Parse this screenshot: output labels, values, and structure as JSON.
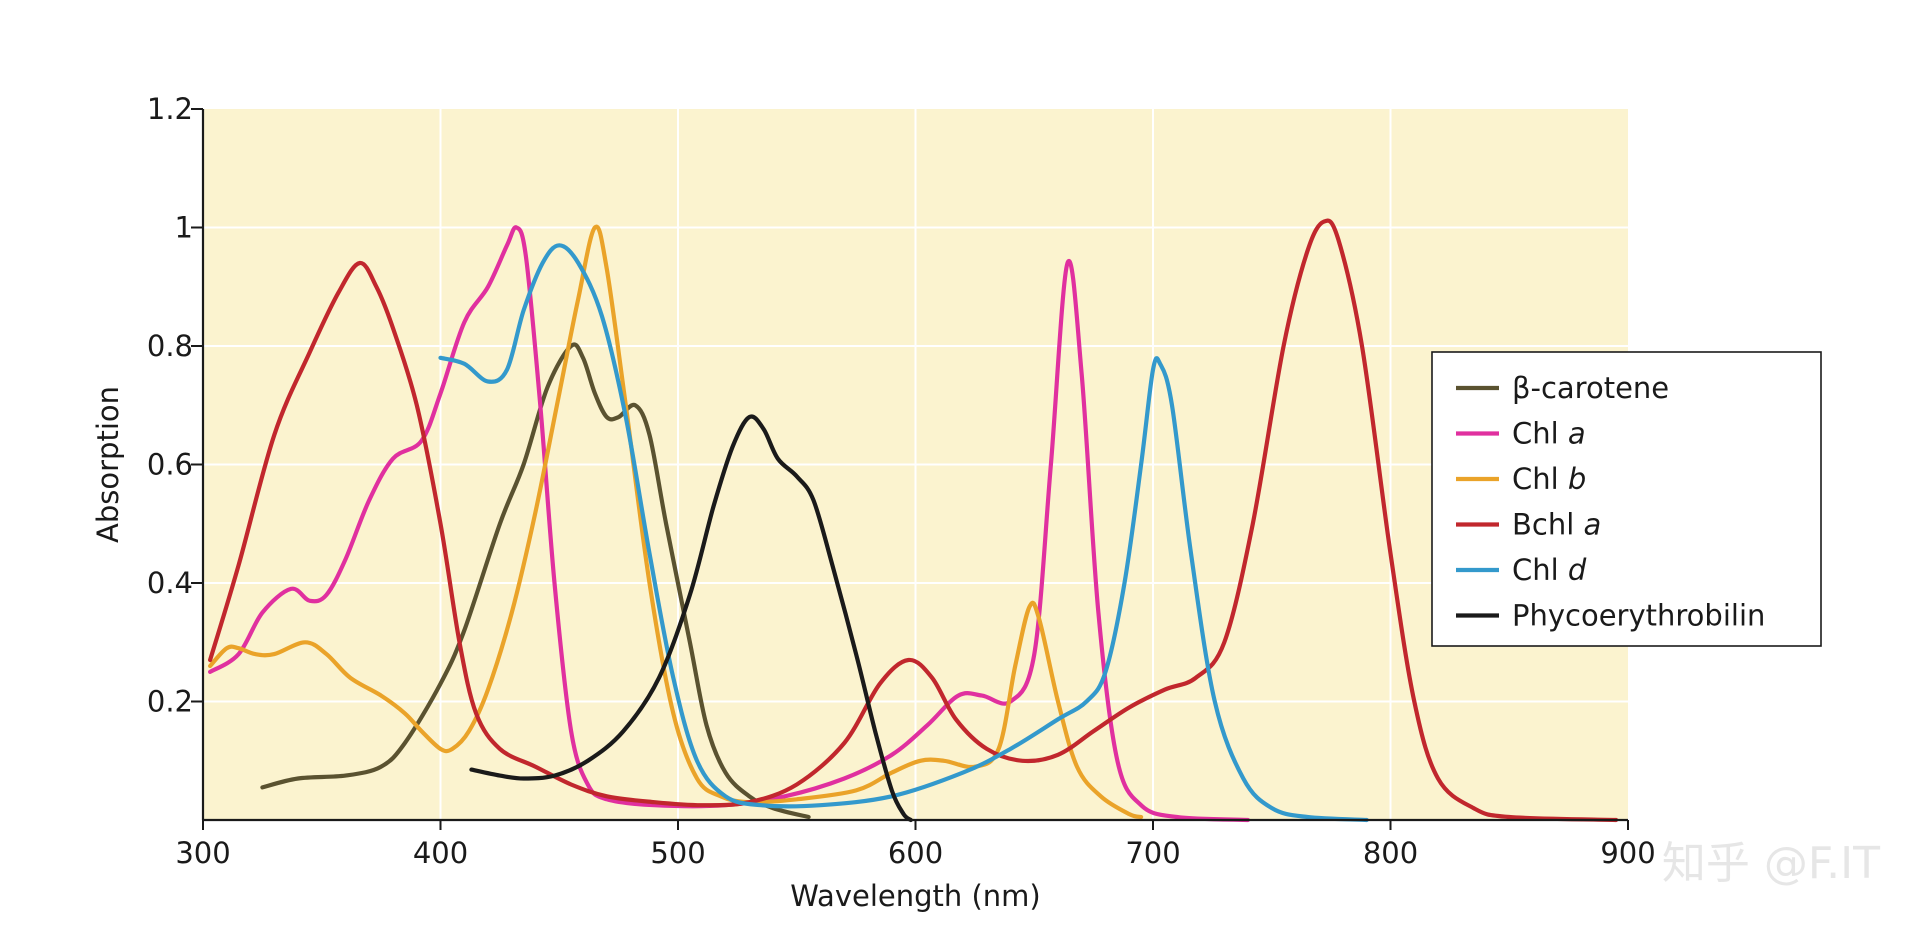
{
  "chart_data": {
    "type": "line",
    "title": "",
    "xlabel": "Wavelength (nm)",
    "ylabel": "Absorption",
    "xlim": [
      300,
      900
    ],
    "ylim": [
      0,
      1.2
    ],
    "xticks": [
      300,
      400,
      500,
      600,
      700,
      800,
      900
    ],
    "xtick_labels": [
      "300",
      "400",
      "500",
      "600",
      "700",
      "800",
      "900"
    ],
    "yticks": [
      0.2,
      0.4,
      0.6,
      0.8,
      1,
      1.2
    ],
    "ytick_labels": [
      "0.2",
      "0.4",
      "0.6",
      "0.8",
      "1",
      "1.2"
    ],
    "grid": true,
    "background": "#fbf3cf",
    "gridline_color": "#ffffff",
    "legend_position": "right",
    "series": [
      {
        "name": "β-carotene",
        "name_plain": "β-carotene",
        "name_italic": "",
        "color": "#5a5230",
        "points": [
          [
            325,
            0.055
          ],
          [
            340,
            0.07
          ],
          [
            360,
            0.075
          ],
          [
            375,
            0.09
          ],
          [
            385,
            0.13
          ],
          [
            400,
            0.23
          ],
          [
            410,
            0.32
          ],
          [
            425,
            0.5
          ],
          [
            435,
            0.6
          ],
          [
            445,
            0.73
          ],
          [
            455,
            0.8
          ],
          [
            460,
            0.78
          ],
          [
            465,
            0.72
          ],
          [
            470,
            0.68
          ],
          [
            475,
            0.68
          ],
          [
            482,
            0.7
          ],
          [
            488,
            0.65
          ],
          [
            495,
            0.5
          ],
          [
            505,
            0.3
          ],
          [
            512,
            0.16
          ],
          [
            520,
            0.08
          ],
          [
            530,
            0.04
          ],
          [
            540,
            0.02
          ],
          [
            555,
            0.005
          ]
        ]
      },
      {
        "name": "Chl a",
        "name_plain": "Chl ",
        "name_italic": "a",
        "color": "#e0309f",
        "points": [
          [
            303,
            0.25
          ],
          [
            315,
            0.28
          ],
          [
            325,
            0.35
          ],
          [
            337,
            0.39
          ],
          [
            345,
            0.37
          ],
          [
            352,
            0.38
          ],
          [
            360,
            0.44
          ],
          [
            370,
            0.54
          ],
          [
            380,
            0.61
          ],
          [
            392,
            0.64
          ],
          [
            400,
            0.72
          ],
          [
            410,
            0.84
          ],
          [
            420,
            0.9
          ],
          [
            428,
            0.97
          ],
          [
            432,
            1.0
          ],
          [
            436,
            0.95
          ],
          [
            442,
            0.7
          ],
          [
            448,
            0.4
          ],
          [
            455,
            0.15
          ],
          [
            462,
            0.06
          ],
          [
            470,
            0.035
          ],
          [
            490,
            0.025
          ],
          [
            520,
            0.025
          ],
          [
            545,
            0.04
          ],
          [
            570,
            0.07
          ],
          [
            590,
            0.11
          ],
          [
            605,
            0.16
          ],
          [
            618,
            0.21
          ],
          [
            628,
            0.21
          ],
          [
            640,
            0.2
          ],
          [
            650,
            0.28
          ],
          [
            657,
            0.6
          ],
          [
            664,
            0.94
          ],
          [
            670,
            0.75
          ],
          [
            677,
            0.35
          ],
          [
            685,
            0.1
          ],
          [
            695,
            0.025
          ],
          [
            710,
            0.005
          ],
          [
            740,
            0.0
          ]
        ]
      },
      {
        "name": "Chl b",
        "name_plain": "Chl ",
        "name_italic": "b",
        "color": "#eaa329",
        "points": [
          [
            303,
            0.26
          ],
          [
            310,
            0.29
          ],
          [
            315,
            0.29
          ],
          [
            322,
            0.28
          ],
          [
            330,
            0.28
          ],
          [
            343,
            0.3
          ],
          [
            352,
            0.28
          ],
          [
            362,
            0.24
          ],
          [
            375,
            0.21
          ],
          [
            385,
            0.18
          ],
          [
            392,
            0.15
          ],
          [
            400,
            0.12
          ],
          [
            405,
            0.12
          ],
          [
            412,
            0.15
          ],
          [
            420,
            0.22
          ],
          [
            430,
            0.35
          ],
          [
            440,
            0.52
          ],
          [
            450,
            0.72
          ],
          [
            458,
            0.88
          ],
          [
            465,
            1.0
          ],
          [
            470,
            0.93
          ],
          [
            478,
            0.7
          ],
          [
            488,
            0.4
          ],
          [
            498,
            0.18
          ],
          [
            508,
            0.07
          ],
          [
            518,
            0.04
          ],
          [
            530,
            0.03
          ],
          [
            550,
            0.035
          ],
          [
            575,
            0.05
          ],
          [
            590,
            0.08
          ],
          [
            602,
            0.1
          ],
          [
            612,
            0.1
          ],
          [
            625,
            0.09
          ],
          [
            635,
            0.12
          ],
          [
            642,
            0.26
          ],
          [
            648,
            0.36
          ],
          [
            652,
            0.34
          ],
          [
            660,
            0.2
          ],
          [
            668,
            0.09
          ],
          [
            678,
            0.04
          ],
          [
            690,
            0.01
          ],
          [
            695,
            0.005
          ]
        ]
      },
      {
        "name": "Bchl a",
        "name_plain": "Bchl ",
        "name_italic": "a",
        "color": "#c1272d",
        "points": [
          [
            303,
            0.27
          ],
          [
            315,
            0.43
          ],
          [
            330,
            0.65
          ],
          [
            345,
            0.79
          ],
          [
            357,
            0.89
          ],
          [
            366,
            0.94
          ],
          [
            373,
            0.9
          ],
          [
            380,
            0.83
          ],
          [
            390,
            0.7
          ],
          [
            400,
            0.5
          ],
          [
            408,
            0.3
          ],
          [
            415,
            0.18
          ],
          [
            425,
            0.12
          ],
          [
            440,
            0.09
          ],
          [
            455,
            0.06
          ],
          [
            470,
            0.04
          ],
          [
            490,
            0.03
          ],
          [
            510,
            0.025
          ],
          [
            530,
            0.03
          ],
          [
            550,
            0.06
          ],
          [
            570,
            0.13
          ],
          [
            585,
            0.23
          ],
          [
            597,
            0.27
          ],
          [
            607,
            0.24
          ],
          [
            617,
            0.17
          ],
          [
            630,
            0.12
          ],
          [
            645,
            0.1
          ],
          [
            660,
            0.11
          ],
          [
            675,
            0.15
          ],
          [
            690,
            0.19
          ],
          [
            705,
            0.22
          ],
          [
            718,
            0.24
          ],
          [
            730,
            0.3
          ],
          [
            742,
            0.5
          ],
          [
            755,
            0.8
          ],
          [
            765,
            0.96
          ],
          [
            772,
            1.01
          ],
          [
            778,
            0.98
          ],
          [
            788,
            0.8
          ],
          [
            800,
            0.45
          ],
          [
            810,
            0.2
          ],
          [
            820,
            0.07
          ],
          [
            835,
            0.02
          ],
          [
            850,
            0.005
          ],
          [
            895,
            0.0
          ]
        ]
      },
      {
        "name": "Chl d",
        "name_plain": "Chl ",
        "name_italic": "d",
        "color": "#3399cc",
        "points": [
          [
            400,
            0.78
          ],
          [
            410,
            0.77
          ],
          [
            420,
            0.74
          ],
          [
            428,
            0.76
          ],
          [
            435,
            0.86
          ],
          [
            443,
            0.94
          ],
          [
            450,
            0.97
          ],
          [
            458,
            0.94
          ],
          [
            468,
            0.85
          ],
          [
            478,
            0.68
          ],
          [
            488,
            0.45
          ],
          [
            498,
            0.24
          ],
          [
            508,
            0.1
          ],
          [
            520,
            0.04
          ],
          [
            535,
            0.025
          ],
          [
            560,
            0.025
          ],
          [
            590,
            0.04
          ],
          [
            620,
            0.08
          ],
          [
            640,
            0.12
          ],
          [
            660,
            0.17
          ],
          [
            672,
            0.2
          ],
          [
            680,
            0.25
          ],
          [
            688,
            0.4
          ],
          [
            695,
            0.6
          ],
          [
            700,
            0.76
          ],
          [
            703,
            0.77
          ],
          [
            708,
            0.7
          ],
          [
            716,
            0.45
          ],
          [
            726,
            0.2
          ],
          [
            738,
            0.07
          ],
          [
            750,
            0.02
          ],
          [
            765,
            0.005
          ],
          [
            790,
            0.0
          ]
        ]
      },
      {
        "name": "Phycoerythrobilin",
        "name_plain": "Phycoerythrobilin",
        "name_italic": "",
        "color": "#1a1a1a",
        "points": [
          [
            413,
            0.085
          ],
          [
            425,
            0.075
          ],
          [
            435,
            0.07
          ],
          [
            448,
            0.075
          ],
          [
            462,
            0.1
          ],
          [
            477,
            0.15
          ],
          [
            492,
            0.24
          ],
          [
            505,
            0.38
          ],
          [
            515,
            0.53
          ],
          [
            523,
            0.63
          ],
          [
            530,
            0.68
          ],
          [
            536,
            0.66
          ],
          [
            542,
            0.61
          ],
          [
            550,
            0.58
          ],
          [
            557,
            0.54
          ],
          [
            565,
            0.43
          ],
          [
            575,
            0.28
          ],
          [
            583,
            0.15
          ],
          [
            590,
            0.05
          ],
          [
            595,
            0.01
          ],
          [
            598,
            0.0
          ]
        ]
      }
    ]
  },
  "watermark": {
    "text": "知乎 @F.IT"
  }
}
